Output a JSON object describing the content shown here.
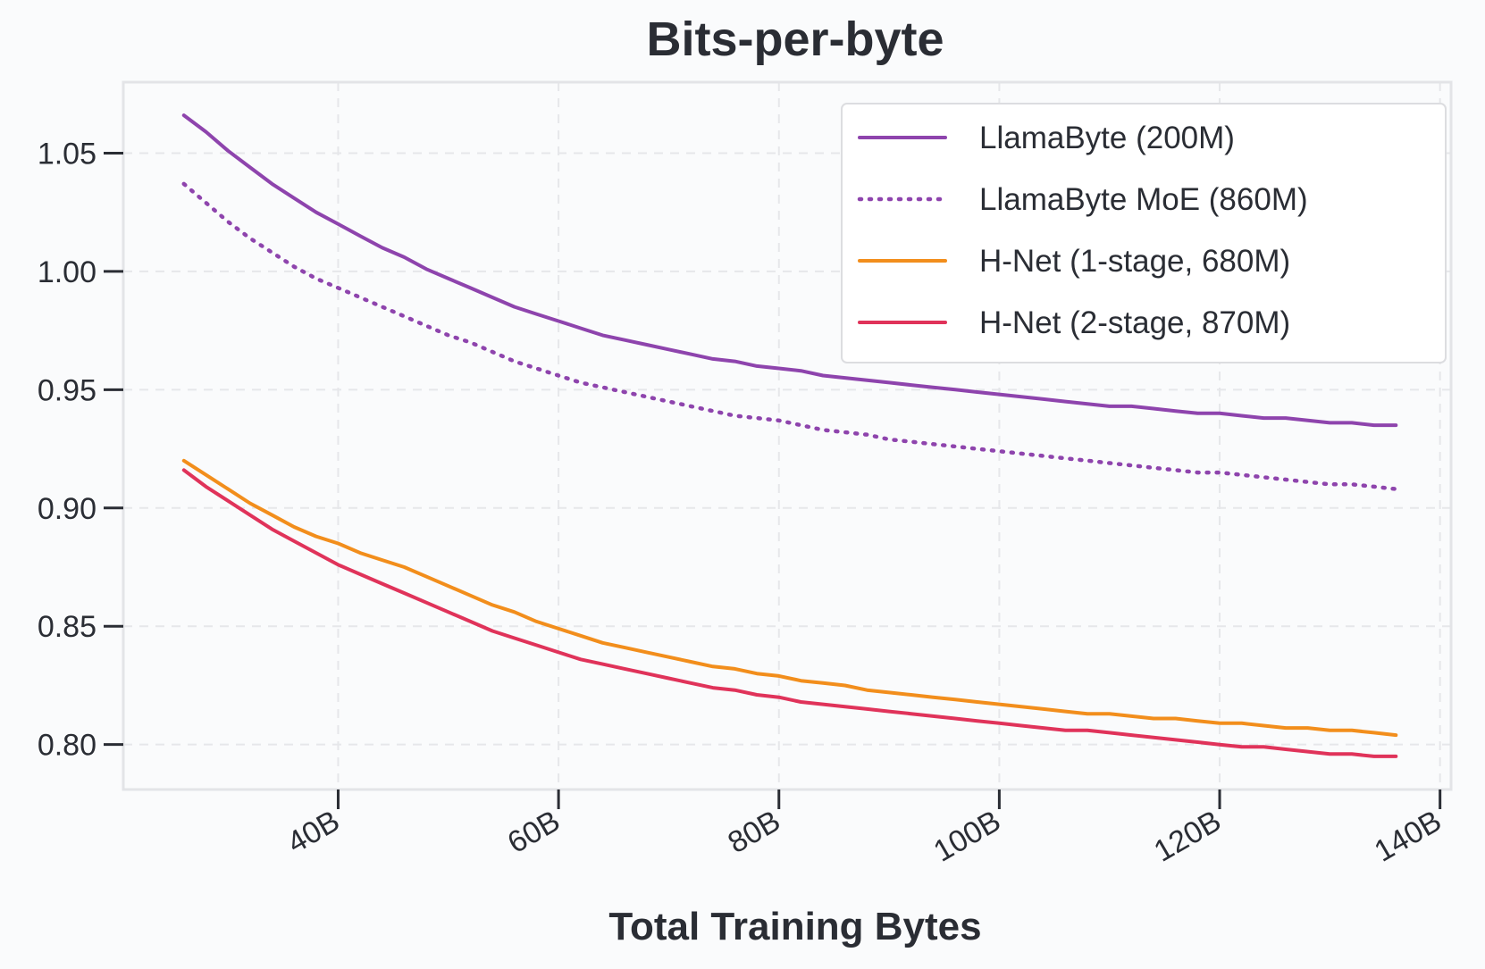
{
  "chart_data": {
    "type": "line",
    "title": "Bits-per-byte",
    "xlabel": "Total Training Bytes",
    "ylabel": "",
    "xlim": [
      20.5,
      141
    ],
    "ylim": [
      0.781,
      1.08
    ],
    "x_ticks": [
      40,
      60,
      80,
      100,
      120,
      140
    ],
    "x_tick_labels": [
      "40B",
      "60B",
      "80B",
      "100B",
      "120B",
      "140B"
    ],
    "y_ticks": [
      0.8,
      0.85,
      0.9,
      0.95,
      1.0,
      1.05
    ],
    "y_tick_labels": [
      "0.80",
      "0.85",
      "0.90",
      "0.95",
      "1.00",
      "1.05"
    ],
    "grid": true,
    "legend_position": "top-right",
    "x": [
      26,
      28,
      30,
      32,
      34,
      36,
      38,
      40,
      42,
      44,
      46,
      48,
      50,
      52,
      54,
      56,
      58,
      60,
      62,
      64,
      66,
      68,
      70,
      72,
      74,
      76,
      78,
      80,
      82,
      84,
      86,
      88,
      90,
      92,
      94,
      96,
      98,
      100,
      102,
      104,
      106,
      108,
      110,
      112,
      114,
      116,
      118,
      120,
      122,
      124,
      126,
      128,
      130,
      132,
      134,
      136
    ],
    "series": [
      {
        "name": "LlamaByte (200M)",
        "color": "#8e44ad",
        "style": "solid",
        "values": [
          1.066,
          1.059,
          1.051,
          1.044,
          1.037,
          1.031,
          1.025,
          1.02,
          1.015,
          1.01,
          1.006,
          1.001,
          0.997,
          0.993,
          0.989,
          0.985,
          0.982,
          0.979,
          0.976,
          0.973,
          0.971,
          0.969,
          0.967,
          0.965,
          0.963,
          0.962,
          0.96,
          0.959,
          0.958,
          0.956,
          0.955,
          0.954,
          0.953,
          0.952,
          0.951,
          0.95,
          0.949,
          0.948,
          0.947,
          0.946,
          0.945,
          0.944,
          0.943,
          0.943,
          0.942,
          0.941,
          0.94,
          0.94,
          0.939,
          0.938,
          0.938,
          0.937,
          0.936,
          0.936,
          0.935,
          0.935
        ]
      },
      {
        "name": "LlamaByte MoE (860M)",
        "color": "#8e44ad",
        "style": "dotted",
        "values": [
          1.037,
          1.029,
          1.021,
          1.014,
          1.008,
          1.002,
          0.997,
          0.993,
          0.989,
          0.985,
          0.981,
          0.977,
          0.973,
          0.97,
          0.966,
          0.962,
          0.959,
          0.956,
          0.953,
          0.951,
          0.949,
          0.947,
          0.945,
          0.943,
          0.941,
          0.939,
          0.938,
          0.937,
          0.935,
          0.933,
          0.932,
          0.931,
          0.929,
          0.928,
          0.927,
          0.926,
          0.925,
          0.924,
          0.923,
          0.922,
          0.921,
          0.92,
          0.919,
          0.918,
          0.917,
          0.916,
          0.915,
          0.915,
          0.914,
          0.913,
          0.912,
          0.911,
          0.91,
          0.91,
          0.909,
          0.908
        ]
      },
      {
        "name": "H-Net (1-stage, 680M)",
        "color": "#f28e1c",
        "style": "solid",
        "values": [
          0.92,
          0.914,
          0.908,
          0.902,
          0.897,
          0.892,
          0.888,
          0.885,
          0.881,
          0.878,
          0.875,
          0.871,
          0.867,
          0.863,
          0.859,
          0.856,
          0.852,
          0.849,
          0.846,
          0.843,
          0.841,
          0.839,
          0.837,
          0.835,
          0.833,
          0.832,
          0.83,
          0.829,
          0.827,
          0.826,
          0.825,
          0.823,
          0.822,
          0.821,
          0.82,
          0.819,
          0.818,
          0.817,
          0.816,
          0.815,
          0.814,
          0.813,
          0.813,
          0.812,
          0.811,
          0.811,
          0.81,
          0.809,
          0.809,
          0.808,
          0.807,
          0.807,
          0.806,
          0.806,
          0.805,
          0.804
        ]
      },
      {
        "name": "H-Net (2-stage, 870M)",
        "color": "#e0335a",
        "style": "solid",
        "values": [
          0.916,
          0.909,
          0.903,
          0.897,
          0.891,
          0.886,
          0.881,
          0.876,
          0.872,
          0.868,
          0.864,
          0.86,
          0.856,
          0.852,
          0.848,
          0.845,
          0.842,
          0.839,
          0.836,
          0.834,
          0.832,
          0.83,
          0.828,
          0.826,
          0.824,
          0.823,
          0.821,
          0.82,
          0.818,
          0.817,
          0.816,
          0.815,
          0.814,
          0.813,
          0.812,
          0.811,
          0.81,
          0.809,
          0.808,
          0.807,
          0.806,
          0.806,
          0.805,
          0.804,
          0.803,
          0.802,
          0.801,
          0.8,
          0.799,
          0.799,
          0.798,
          0.797,
          0.796,
          0.796,
          0.795,
          0.795
        ]
      }
    ]
  }
}
